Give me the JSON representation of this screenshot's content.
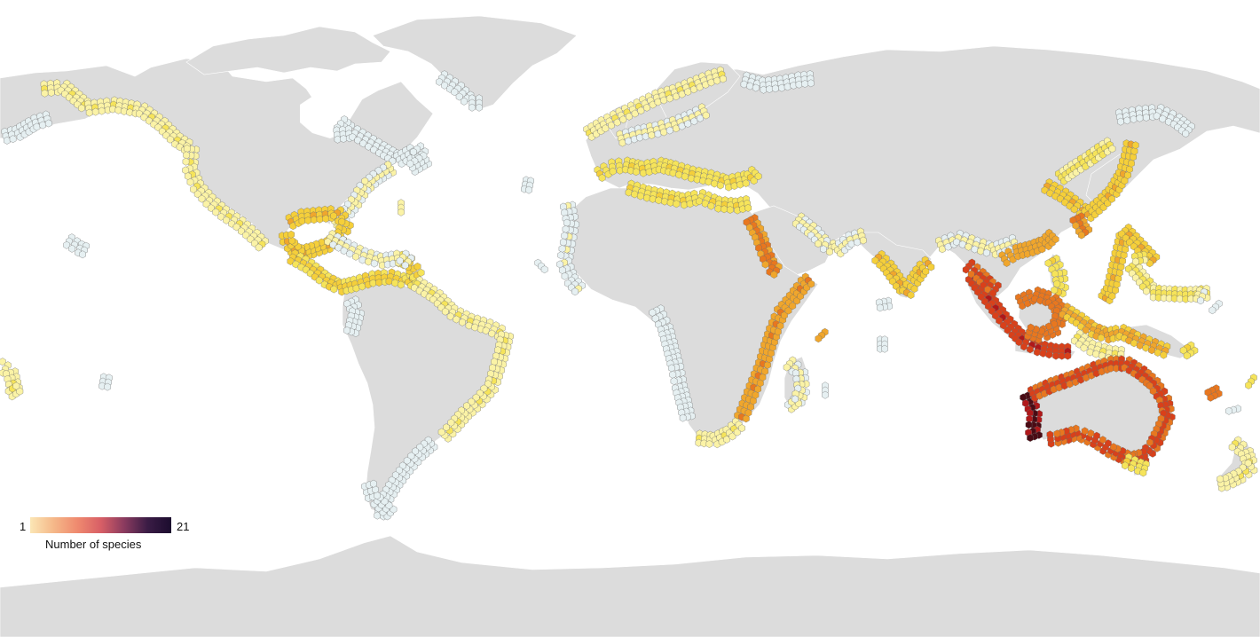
{
  "legend": {
    "min_label": "1",
    "max_label": "21",
    "title": "Number of species",
    "gradient": [
      "#fbe6b5",
      "#f5b889",
      "#ef8a6f",
      "#d85f66",
      "#8a3b5f",
      "#3a1c45",
      "#1b0c2e"
    ]
  },
  "colors": {
    "background": "#ffffff",
    "land": "#dcdcdc",
    "border": "#ffffff",
    "hex_outline": "#6b6b6b",
    "cell_scale": {
      "1": "#e6f0f2",
      "3": "#fbf3a6",
      "5": "#f6e45a",
      "7": "#f5cf3a",
      "9": "#f0a62c",
      "12": "#e8771f",
      "15": "#d9401a",
      "18": "#b0181a",
      "21": "#4a0b14"
    }
  }
}
